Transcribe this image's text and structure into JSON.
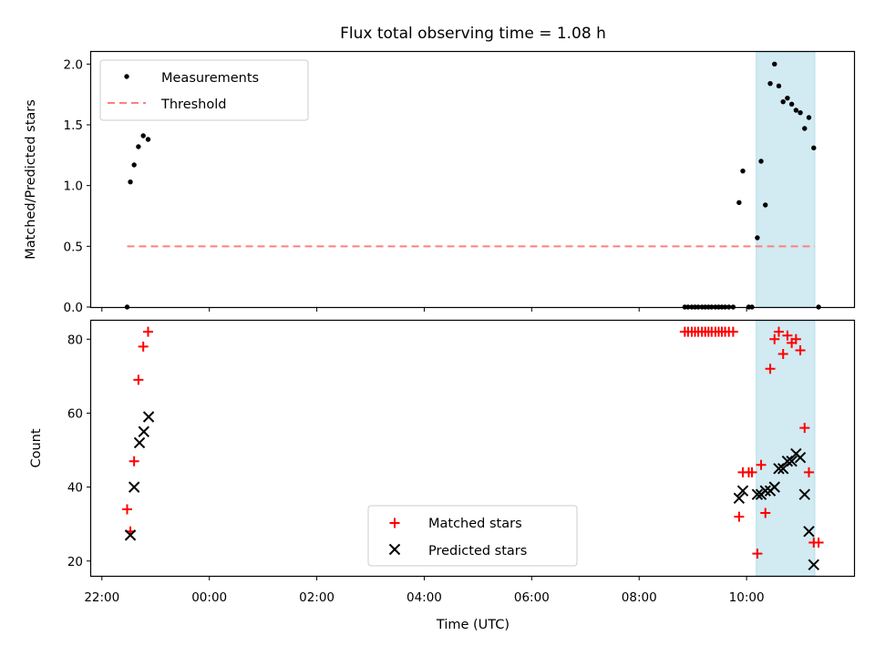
{
  "figure": {
    "title": "Flux total observing time = 1.08 h"
  },
  "chart_data": [
    {
      "type": "scatter",
      "panel": "top",
      "title": "Flux total observing time = 1.08 h",
      "xlabel": "",
      "ylabel": "Matched/Predicted stars",
      "x_unit": "hours since 22:00 UTC",
      "xlim": [
        -0.2,
        14.0
      ],
      "ylim": [
        0,
        2.1
      ],
      "yticks": [
        0.0,
        0.5,
        1.0,
        1.5,
        2.0
      ],
      "ytick_labels": [
        "0.0",
        "0.5",
        "1.0",
        "1.5",
        "2.0"
      ],
      "grid": false,
      "legend_position": "upper-left",
      "shaded_span": {
        "x0": 12.18,
        "x1": 13.27,
        "color": "#add8e6"
      },
      "series": [
        {
          "name": "Measurements",
          "kind": "scatter",
          "color": "#000000",
          "points": [
            [
              0.47,
              0.0
            ],
            [
              0.53,
              1.03
            ],
            [
              0.6,
              1.17
            ],
            [
              0.68,
              1.32
            ],
            [
              0.77,
              1.41
            ],
            [
              0.86,
              1.38
            ],
            [
              10.85,
              0.0
            ],
            [
              10.91,
              0.0
            ],
            [
              10.98,
              0.0
            ],
            [
              11.04,
              0.0
            ],
            [
              11.1,
              0.0
            ],
            [
              11.17,
              0.0
            ],
            [
              11.23,
              0.0
            ],
            [
              11.29,
              0.0
            ],
            [
              11.35,
              0.0
            ],
            [
              11.42,
              0.0
            ],
            [
              11.48,
              0.0
            ],
            [
              11.54,
              0.0
            ],
            [
              11.6,
              0.0
            ],
            [
              11.67,
              0.0
            ],
            [
              11.75,
              0.0
            ],
            [
              11.86,
              0.86
            ],
            [
              11.93,
              1.12
            ],
            [
              12.04,
              0.0
            ],
            [
              12.1,
              0.0
            ],
            [
              12.2,
              0.57
            ],
            [
              12.27,
              1.2
            ],
            [
              12.35,
              0.84
            ],
            [
              12.44,
              1.84
            ],
            [
              12.52,
              2.0
            ],
            [
              12.6,
              1.82
            ],
            [
              12.68,
              1.69
            ],
            [
              12.76,
              1.72
            ],
            [
              12.84,
              1.67
            ],
            [
              12.92,
              1.62
            ],
            [
              13.0,
              1.6
            ],
            [
              13.08,
              1.47
            ],
            [
              13.16,
              1.56
            ],
            [
              13.25,
              1.31
            ],
            [
              13.34,
              0.0
            ]
          ]
        },
        {
          "name": "Threshold",
          "kind": "dashed-line",
          "color": "#ff7f7f",
          "points": [
            [
              0.47,
              0.5
            ],
            [
              13.27,
              0.5
            ]
          ]
        }
      ]
    },
    {
      "type": "scatter",
      "panel": "bottom",
      "xlabel": "Time (UTC)",
      "ylabel": "Count",
      "x_unit": "hours since 22:00 UTC",
      "xlim": [
        -0.2,
        14.0
      ],
      "ylim": [
        16,
        85
      ],
      "yticks": [
        20,
        40,
        60,
        80
      ],
      "ytick_labels": [
        "20",
        "40",
        "60",
        "80"
      ],
      "xticks": [
        0,
        2,
        4,
        6,
        8,
        10,
        12
      ],
      "xtick_labels": [
        "22:00",
        "00:00",
        "02:00",
        "04:00",
        "06:00",
        "08:00",
        "10:00"
      ],
      "grid": false,
      "legend_position": "lower-center",
      "shaded_span": {
        "x0": 12.18,
        "x1": 13.27,
        "color": "#add8e6"
      },
      "series": [
        {
          "name": "Matched stars",
          "marker": "plus",
          "color": "#ff0000",
          "points": [
            [
              0.47,
              34
            ],
            [
              0.53,
              28
            ],
            [
              0.6,
              47
            ],
            [
              0.68,
              69
            ],
            [
              0.77,
              78
            ],
            [
              0.86,
              82
            ],
            [
              10.85,
              82
            ],
            [
              10.91,
              82
            ],
            [
              10.98,
              82
            ],
            [
              11.04,
              82
            ],
            [
              11.1,
              82
            ],
            [
              11.17,
              82
            ],
            [
              11.23,
              82
            ],
            [
              11.29,
              82
            ],
            [
              11.35,
              82
            ],
            [
              11.42,
              82
            ],
            [
              11.48,
              82
            ],
            [
              11.54,
              82
            ],
            [
              11.6,
              82
            ],
            [
              11.67,
              82
            ],
            [
              11.75,
              82
            ],
            [
              11.86,
              32
            ],
            [
              11.93,
              44
            ],
            [
              12.04,
              44
            ],
            [
              12.1,
              44
            ],
            [
              12.2,
              22
            ],
            [
              12.27,
              46
            ],
            [
              12.35,
              33
            ],
            [
              12.44,
              72
            ],
            [
              12.52,
              80
            ],
            [
              12.6,
              82
            ],
            [
              12.68,
              76
            ],
            [
              12.76,
              81
            ],
            [
              12.84,
              79
            ],
            [
              12.92,
              80
            ],
            [
              13.0,
              77
            ],
            [
              13.08,
              56
            ],
            [
              13.16,
              44
            ],
            [
              13.25,
              25
            ],
            [
              13.34,
              25
            ]
          ]
        },
        {
          "name": "Predicted stars",
          "marker": "x",
          "color": "#000000",
          "points": [
            [
              0.53,
              27
            ],
            [
              0.6,
              40
            ],
            [
              0.7,
              52
            ],
            [
              0.78,
              55
            ],
            [
              0.87,
              59
            ],
            [
              11.86,
              37
            ],
            [
              11.93,
              39
            ],
            [
              12.2,
              38
            ],
            [
              12.27,
              38
            ],
            [
              12.35,
              39
            ],
            [
              12.44,
              39
            ],
            [
              12.52,
              40
            ],
            [
              12.6,
              45
            ],
            [
              12.68,
              45
            ],
            [
              12.76,
              47
            ],
            [
              12.84,
              47
            ],
            [
              12.92,
              49
            ],
            [
              13.0,
              48
            ],
            [
              13.08,
              38
            ],
            [
              13.16,
              28
            ],
            [
              13.25,
              19
            ]
          ]
        }
      ]
    }
  ]
}
